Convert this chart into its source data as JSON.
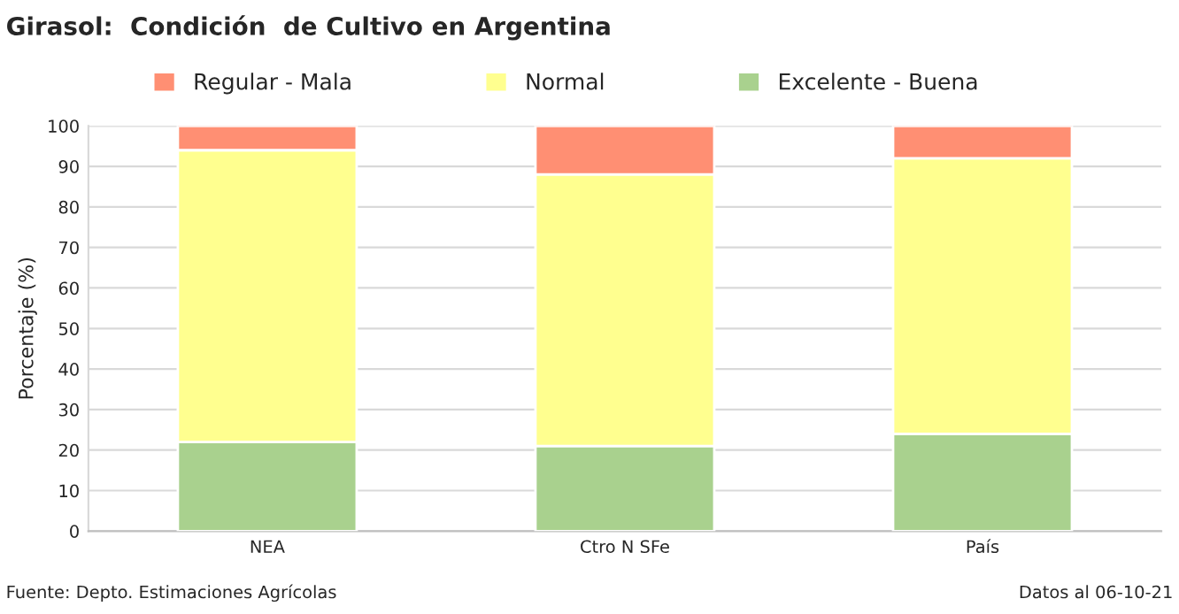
{
  "chart_data": {
    "type": "bar",
    "title": "Girasol:  Condición  de Cultivo en Argentina",
    "ylabel": "Porcentaje (%)",
    "categories": [
      "NEA",
      "Ctro N SFe",
      "País"
    ],
    "series": [
      {
        "name": "Excelente - Buena",
        "color": "#a9d18e",
        "values": [
          22,
          21,
          24
        ]
      },
      {
        "name": "Normal",
        "color": "#ffff8f",
        "values": [
          72,
          67,
          68
        ]
      },
      {
        "name": "Regular - Mala",
        "color": "#ff8f73",
        "values": [
          6,
          12,
          8
        ]
      }
    ],
    "stacked": true,
    "ylim": [
      0,
      100
    ],
    "yticks": [
      0,
      10,
      20,
      30,
      40,
      50,
      60,
      70,
      80,
      90,
      100
    ],
    "grid": "y",
    "legend": "top",
    "annotations": [
      "Fuente: Depto. Estimaciones Agrícolas",
      "Datos al 06-10-21"
    ]
  }
}
